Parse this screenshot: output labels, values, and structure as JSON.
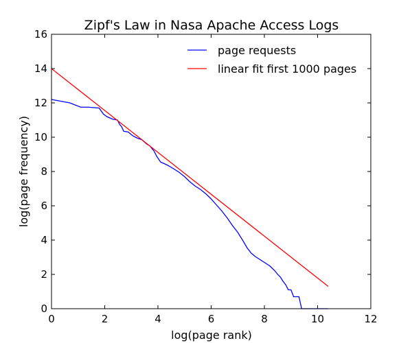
{
  "chart_data": {
    "type": "line",
    "title": "Zipf's Law in Nasa Apache Access Logs",
    "xlabel": "log(page rank)",
    "ylabel": "log(page frequency)",
    "xlim": [
      0,
      12
    ],
    "ylim": [
      0,
      16
    ],
    "xticks": [
      0,
      2,
      4,
      6,
      8,
      10,
      12
    ],
    "yticks": [
      0,
      2,
      4,
      6,
      8,
      10,
      12,
      14,
      16
    ],
    "xtick_labels": [
      "0",
      "2",
      "4",
      "6",
      "8",
      "10",
      "12"
    ],
    "ytick_labels": [
      "0",
      "2",
      "4",
      "6",
      "8",
      "10",
      "12",
      "14",
      "16"
    ],
    "grid": false,
    "legend_position": "top-right",
    "series": [
      {
        "name": "page requests",
        "color": "#0000ff",
        "style": "line",
        "x": [
          0,
          0.69,
          1.1,
          1.39,
          1.79,
          1.95,
          2.08,
          2.3,
          2.48,
          2.56,
          2.64,
          2.71,
          2.89,
          3.0,
          3.09,
          3.22,
          3.4,
          3.58,
          3.69,
          3.85,
          3.95,
          4.1,
          4.25,
          4.38,
          4.6,
          4.8,
          5.0,
          5.2,
          5.4,
          5.6,
          5.8,
          6.0,
          6.2,
          6.4,
          6.6,
          6.8,
          7.0,
          7.2,
          7.35,
          7.5,
          7.65,
          7.8,
          7.95,
          8.1,
          8.2,
          8.3,
          8.4,
          8.5,
          8.6,
          8.7,
          8.8,
          8.9,
          9.0,
          9.1,
          9.2,
          9.3,
          9.4,
          9.55,
          9.7,
          10.0,
          10.3,
          10.4
        ],
        "y": [
          12.2,
          12.0,
          11.75,
          11.75,
          11.7,
          11.35,
          11.2,
          11.05,
          11.0,
          10.75,
          10.6,
          10.35,
          10.3,
          10.15,
          10.05,
          9.95,
          9.85,
          9.6,
          9.5,
          9.2,
          8.9,
          8.55,
          8.45,
          8.35,
          8.15,
          7.95,
          7.7,
          7.4,
          7.15,
          6.95,
          6.7,
          6.4,
          6.05,
          5.7,
          5.3,
          4.85,
          4.45,
          3.95,
          3.55,
          3.25,
          3.05,
          2.9,
          2.75,
          2.6,
          2.5,
          2.35,
          2.2,
          2.0,
          1.85,
          1.6,
          1.4,
          1.1,
          1.1,
          0.7,
          0.7,
          0.7,
          0.0,
          0.0,
          0.0,
          0.0,
          0.0,
          0.0
        ]
      },
      {
        "name": "linear fit first 1000 pages",
        "color": "#ff0000",
        "style": "line",
        "x": [
          0,
          10.4
        ],
        "y": [
          14.0,
          1.3
        ]
      }
    ]
  }
}
